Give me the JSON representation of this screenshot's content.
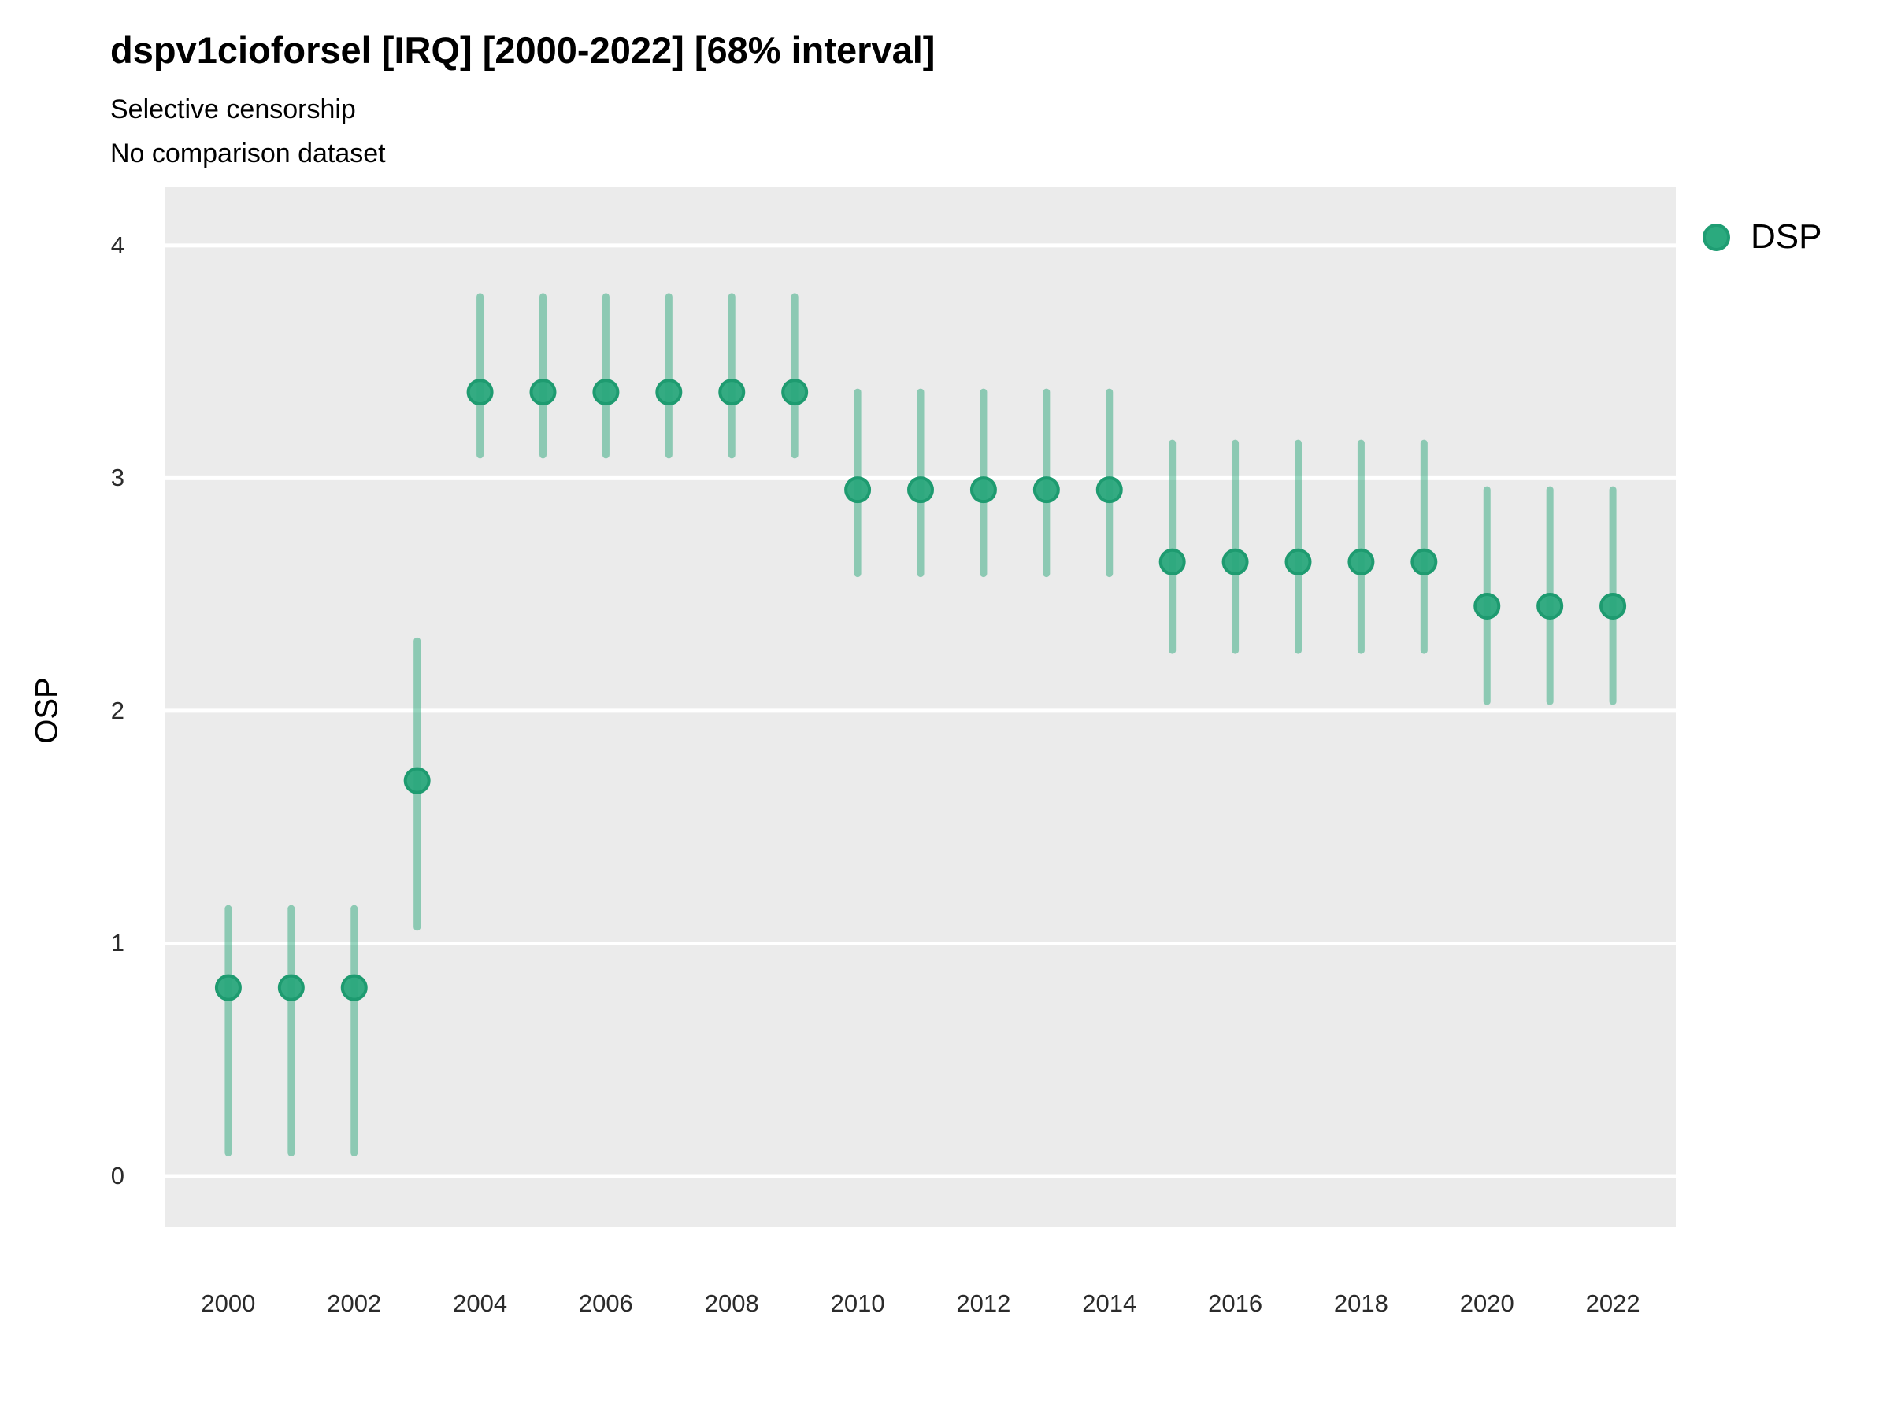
{
  "chart_data": {
    "type": "scatter",
    "variant": "pointrange",
    "title": "dspv1cioforsel [IRQ] [2000-2022] [68% interval]",
    "subtitle_line1": "Selective censorship",
    "subtitle_line2": "No comparison dataset",
    "xlabel": "",
    "ylabel": "OSP",
    "interval_label": "68% interval",
    "xlim": [
      1999,
      2023
    ],
    "ylim": [
      -0.22,
      4.25
    ],
    "x_ticks": [
      2000,
      2002,
      2004,
      2006,
      2008,
      2010,
      2012,
      2014,
      2016,
      2018,
      2020,
      2022
    ],
    "y_ticks": [
      0,
      1,
      2,
      3,
      4
    ],
    "grid": "horizontal white lines on gray panel",
    "legend_position": "right-top",
    "series": [
      {
        "name": "DSP",
        "point_color": "#2AA87C",
        "point_ring_color": "#1E9B70",
        "range_color": "rgba(24,160,110,0.45)",
        "x": [
          2000,
          2001,
          2002,
          2003,
          2004,
          2005,
          2006,
          2007,
          2008,
          2009,
          2010,
          2011,
          2012,
          2013,
          2014,
          2015,
          2016,
          2017,
          2018,
          2019,
          2020,
          2021,
          2022
        ],
        "y": [
          0.81,
          0.81,
          0.81,
          1.7,
          3.37,
          3.37,
          3.37,
          3.37,
          3.37,
          3.37,
          2.95,
          2.95,
          2.95,
          2.95,
          2.95,
          2.64,
          2.64,
          2.64,
          2.64,
          2.64,
          2.45,
          2.45,
          2.45
        ],
        "lo": [
          0.1,
          0.1,
          0.1,
          1.07,
          3.1,
          3.1,
          3.1,
          3.1,
          3.1,
          3.1,
          2.59,
          2.59,
          2.59,
          2.59,
          2.59,
          2.26,
          2.26,
          2.26,
          2.26,
          2.26,
          2.04,
          2.04,
          2.04
        ],
        "hi": [
          1.15,
          1.15,
          1.15,
          2.3,
          3.78,
          3.78,
          3.78,
          3.78,
          3.78,
          3.78,
          3.37,
          3.37,
          3.37,
          3.37,
          3.37,
          3.15,
          3.15,
          3.15,
          3.15,
          3.15,
          2.95,
          2.95,
          2.95
        ]
      }
    ],
    "panel_bg": "#EBEBEB",
    "gridline_color": "#FFFFFF"
  }
}
